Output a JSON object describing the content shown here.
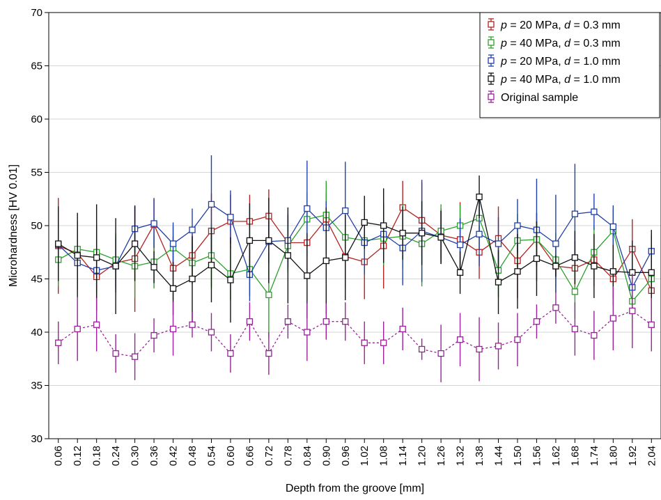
{
  "chart_data": {
    "type": "line",
    "xlabel": "Depth from the groove [mm]",
    "ylabel": "Microhardness [HV 0.01]",
    "ylim": [
      30,
      70
    ],
    "yticks": [
      30,
      35,
      40,
      45,
      50,
      55,
      60,
      65,
      70
    ],
    "grid": "horizontal",
    "legend_position": "top-right",
    "categories": [
      "0.06",
      "0.12",
      "0.18",
      "0.24",
      "0.30",
      "0.36",
      "0.42",
      "0.48",
      "0.54",
      "0.60",
      "0.66",
      "0.72",
      "0.78",
      "0.84",
      "0.90",
      "0.96",
      "1.02",
      "1.08",
      "1.14",
      "1.20",
      "1.26",
      "1.32",
      "1.38",
      "1.44",
      "1.50",
      "1.56",
      "1.62",
      "1.68",
      "1.74",
      "1.80",
      "1.92",
      "2.04"
    ],
    "series": [
      {
        "legend": {
          "p": "p",
          "pval": " = 20 MPa, ",
          "d": "d",
          "dval": " = 0.3 mm"
        },
        "color": "#b22222",
        "dash": "",
        "values": [
          48.1,
          47.4,
          45.2,
          46.5,
          46.9,
          50.1,
          46.0,
          47.2,
          49.5,
          50.4,
          50.4,
          50.9,
          48.4,
          48.4,
          50.6,
          47.1,
          46.6,
          48.1,
          51.7,
          50.5,
          49.1,
          48.7,
          47.5,
          48.8,
          46.7,
          48.7,
          46.2,
          46.0,
          46.8,
          45.0,
          47.8,
          43.9
        ],
        "err": [
          4.5,
          3.0,
          2.0,
          2.5,
          5.0,
          2.5,
          3.0,
          2.0,
          3.5,
          2.5,
          2.5,
          2.5,
          2.5,
          3.5,
          2.5,
          3.0,
          3.5,
          4.0,
          2.5,
          3.5,
          2.5,
          3.5,
          2.5,
          3.0,
          3.5,
          2.5,
          2.5,
          2.5,
          2.5,
          2.5,
          2.8,
          2.8
        ]
      },
      {
        "legend": {
          "p": "p",
          "pval": " = 40 MPa, ",
          "d": "d",
          "dval": " = 0.3 mm"
        },
        "color": "#2ca02c",
        "dash": "",
        "values": [
          46.8,
          47.8,
          47.5,
          46.8,
          46.2,
          46.6,
          47.9,
          46.5,
          47.2,
          45.5,
          45.9,
          43.5,
          48.1,
          50.6,
          51.0,
          48.9,
          48.6,
          48.8,
          49.0,
          48.3,
          49.5,
          50.0,
          50.7,
          45.8,
          48.6,
          48.7,
          46.8,
          43.8,
          47.5,
          49.5,
          42.9,
          45.0
        ],
        "err": [
          2.5,
          2.5,
          2.5,
          2.5,
          3.0,
          2.5,
          2.0,
          2.0,
          3.0,
          2.5,
          2.5,
          4.0,
          2.5,
          2.5,
          3.2,
          2.5,
          2.5,
          2.5,
          3.0,
          4.0,
          2.5,
          2.0,
          2.0,
          2.5,
          2.5,
          2.5,
          2.5,
          2.5,
          2.5,
          2.0,
          2.5,
          2.5
        ]
      },
      {
        "legend": {
          "p": "p",
          "pval": " = 20 MPa, ",
          "d": "d",
          "dval": " = 1.0 mm"
        },
        "color": "#1f3fa8",
        "dash": "",
        "values": [
          48.2,
          46.5,
          45.8,
          46.2,
          49.7,
          50.2,
          48.3,
          49.6,
          52.0,
          50.8,
          45.4,
          48.5,
          48.6,
          51.6,
          49.8,
          51.4,
          48.4,
          49.2,
          47.9,
          49.5,
          48.9,
          48.2,
          49.2,
          48.3,
          50.0,
          49.6,
          48.3,
          51.1,
          51.3,
          49.9,
          44.2,
          47.6
        ],
        "err": [
          2.0,
          2.5,
          2.0,
          2.5,
          2.2,
          2.3,
          2.0,
          2.0,
          4.6,
          2.5,
          2.5,
          2.0,
          2.5,
          4.5,
          2.5,
          4.6,
          3.0,
          2.5,
          3.5,
          4.8,
          2.5,
          2.5,
          3.0,
          2.5,
          2.5,
          4.8,
          4.6,
          4.7,
          1.7,
          2.0,
          2.5,
          1.5
        ]
      },
      {
        "legend": {
          "p": "p",
          "pval": " = 40 MPa, ",
          "d": "d",
          "dval": " = 1.0 mm"
        },
        "color": "#111111",
        "dash": "",
        "values": [
          48.3,
          47.2,
          47.0,
          46.2,
          48.3,
          46.1,
          44.1,
          45.0,
          46.3,
          44.9,
          48.6,
          48.6,
          47.2,
          45.3,
          46.7,
          47.0,
          50.3,
          50.0,
          49.3,
          49.3,
          48.9,
          45.6,
          52.7,
          44.7,
          45.7,
          46.9,
          46.2,
          47.0,
          46.2,
          45.7,
          45.6,
          45.6
        ],
        "err": [
          3.5,
          4.0,
          5.0,
          4.5,
          3.5,
          1.5,
          2.5,
          4.0,
          3.5,
          4.0,
          3.5,
          4.0,
          4.5,
          4.0,
          5.0,
          4.0,
          2.5,
          3.5,
          2.5,
          3.0,
          2.5,
          2.0,
          2.0,
          3.0,
          3.5,
          3.5,
          1.0,
          2.5,
          3.0,
          2.5,
          3.0,
          4.0
        ]
      },
      {
        "legend": {
          "text": "Original sample"
        },
        "color": "#9b1f9b",
        "dash": "3,3",
        "values": [
          39.0,
          40.3,
          40.7,
          38.0,
          37.7,
          39.7,
          40.3,
          40.7,
          40.0,
          38.0,
          41.0,
          38.0,
          41.0,
          40.0,
          41.0,
          41.0,
          39.0,
          39.0,
          40.3,
          38.4,
          38.0,
          39.3,
          38.4,
          38.7,
          39.3,
          41.0,
          42.3,
          40.3,
          39.7,
          41.3,
          42.0,
          40.7
        ],
        "err": [
          2.0,
          3.0,
          2.5,
          1.8,
          2.2,
          1.6,
          2.5,
          1.2,
          1.8,
          1.8,
          1.8,
          2.0,
          1.6,
          2.7,
          1.7,
          1.8,
          2.0,
          2.0,
          2.0,
          1.0,
          2.7,
          2.5,
          3.0,
          2.2,
          2.5,
          1.6,
          1.5,
          2.5,
          2.3,
          3.0,
          3.5,
          2.5
        ]
      }
    ]
  }
}
